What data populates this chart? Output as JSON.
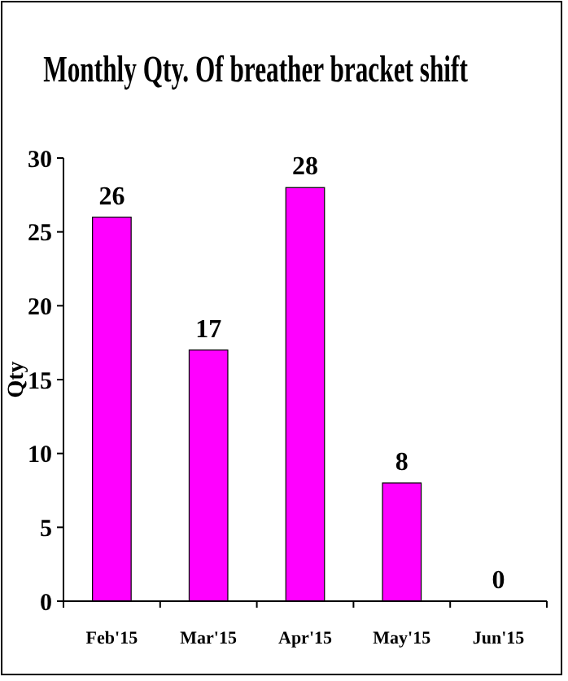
{
  "chart_data": {
    "type": "bar",
    "title": "Monthly Qty. Of breather bracket shift",
    "ylabel": "Qty",
    "categories": [
      "Feb'15",
      "Mar'15",
      "Apr'15",
      "May'15",
      "Jun'15"
    ],
    "values": [
      26,
      17,
      28,
      8,
      0
    ],
    "color": "#ff00ff",
    "ylim": [
      0,
      30
    ],
    "yticks": [
      0,
      5,
      10,
      15,
      20,
      25,
      30
    ],
    "data_labels": true
  }
}
